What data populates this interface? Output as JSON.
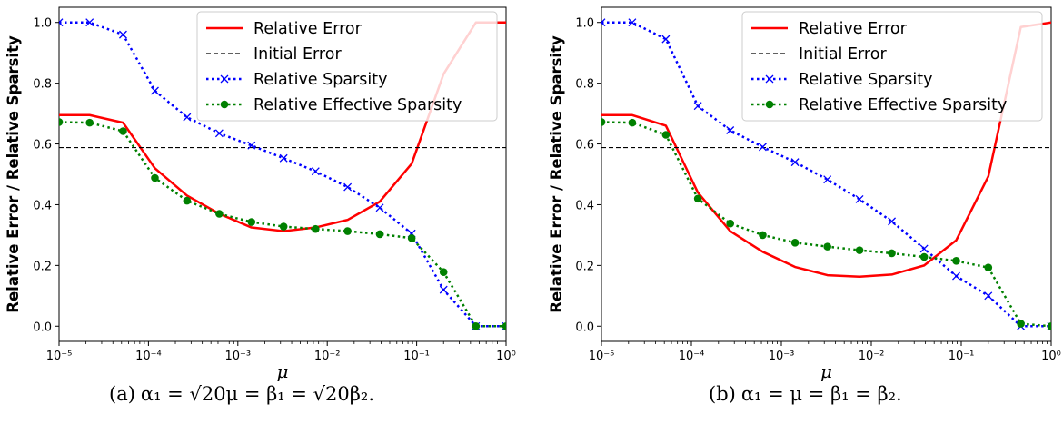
{
  "chart_data": [
    {
      "type": "line",
      "panel": "a",
      "caption_tag": "(a)",
      "caption_math": "α₁ = √20μ = β₁ = √20β₂.",
      "xlabel": "μ",
      "ylabel": "Relative Error / Relative Sparsity",
      "xscale": "log",
      "xlim": [
        1e-05,
        1
      ],
      "ylim": [
        -0.05,
        1.05
      ],
      "xticks": [
        "10⁻⁵",
        "10⁻⁴",
        "10⁻³",
        "10⁻²",
        "10⁻¹",
        "10⁰"
      ],
      "yticks": [
        "0.0",
        "0.2",
        "0.4",
        "0.6",
        "0.8",
        "1.0"
      ],
      "grid": false,
      "legend_position": "top-right",
      "x": [
        1e-05,
        2.2e-05,
        5.2e-05,
        0.000118,
        0.00027,
        0.00062,
        0.00142,
        0.00325,
        0.0074,
        0.0169,
        0.0387,
        0.088,
        0.2,
        0.46,
        1.0
      ],
      "series": [
        {
          "name": "Relative Error",
          "style": "solid",
          "color": "#ff0000",
          "marker": "none",
          "values": [
            0.695,
            0.695,
            0.67,
            0.52,
            0.43,
            0.37,
            0.325,
            0.313,
            0.325,
            0.35,
            0.41,
            0.535,
            0.83,
            1.0,
            1.0
          ]
        },
        {
          "name": "Initial Error",
          "style": "dashed",
          "color": "#000000",
          "marker": "none",
          "values": [
            0.588,
            0.588,
            0.588,
            0.588,
            0.588,
            0.588,
            0.588,
            0.588,
            0.588,
            0.588,
            0.588,
            0.588,
            0.588,
            0.588,
            0.588
          ]
        },
        {
          "name": "Relative Sparsity",
          "style": "dotted",
          "color": "#0000ff",
          "marker": "x",
          "values": [
            1.0,
            1.0,
            0.96,
            0.775,
            0.688,
            0.635,
            0.595,
            0.553,
            0.51,
            0.458,
            0.39,
            0.305,
            0.12,
            0.0,
            0.0
          ]
        },
        {
          "name": "Relative Effective Sparsity",
          "style": "dotted",
          "color": "#008000",
          "marker": "circle",
          "values": [
            0.672,
            0.67,
            0.642,
            0.488,
            0.413,
            0.37,
            0.343,
            0.328,
            0.32,
            0.313,
            0.303,
            0.29,
            0.178,
            0.0,
            0.0
          ]
        }
      ]
    },
    {
      "type": "line",
      "panel": "b",
      "caption_tag": "(b)",
      "caption_math": "α₁ = μ = β₁ = β₂.",
      "xlabel": "μ",
      "ylabel": "Relative Error / Relative Sparsity",
      "xscale": "log",
      "xlim": [
        1e-05,
        1
      ],
      "ylim": [
        -0.05,
        1.05
      ],
      "xticks": [
        "10⁻⁵",
        "10⁻⁴",
        "10⁻³",
        "10⁻²",
        "10⁻¹",
        "10⁰"
      ],
      "yticks": [
        "0.0",
        "0.2",
        "0.4",
        "0.6",
        "0.8",
        "1.0"
      ],
      "grid": false,
      "legend_position": "top-right",
      "x": [
        1e-05,
        2.2e-05,
        5.2e-05,
        0.000118,
        0.00027,
        0.00062,
        0.00142,
        0.00325,
        0.0074,
        0.0169,
        0.0387,
        0.088,
        0.2,
        0.46,
        1.0
      ],
      "series": [
        {
          "name": "Relative Error",
          "style": "solid",
          "color": "#ff0000",
          "marker": "none",
          "values": [
            0.695,
            0.695,
            0.66,
            0.44,
            0.313,
            0.245,
            0.195,
            0.168,
            0.163,
            0.17,
            0.2,
            0.283,
            0.493,
            0.985,
            1.0
          ]
        },
        {
          "name": "Initial Error",
          "style": "dashed",
          "color": "#000000",
          "marker": "none",
          "values": [
            0.588,
            0.588,
            0.588,
            0.588,
            0.588,
            0.588,
            0.588,
            0.588,
            0.588,
            0.588,
            0.588,
            0.588,
            0.588,
            0.588,
            0.588
          ]
        },
        {
          "name": "Relative Sparsity",
          "style": "dotted",
          "color": "#0000ff",
          "marker": "x",
          "values": [
            1.0,
            1.0,
            0.945,
            0.725,
            0.645,
            0.59,
            0.54,
            0.483,
            0.418,
            0.345,
            0.255,
            0.165,
            0.1,
            0.0,
            0.0
          ]
        },
        {
          "name": "Relative Effective Sparsity",
          "style": "dotted",
          "color": "#008000",
          "marker": "circle",
          "values": [
            0.672,
            0.67,
            0.63,
            0.42,
            0.338,
            0.3,
            0.275,
            0.262,
            0.25,
            0.24,
            0.228,
            0.215,
            0.193,
            0.008,
            0.0
          ]
        }
      ]
    }
  ]
}
